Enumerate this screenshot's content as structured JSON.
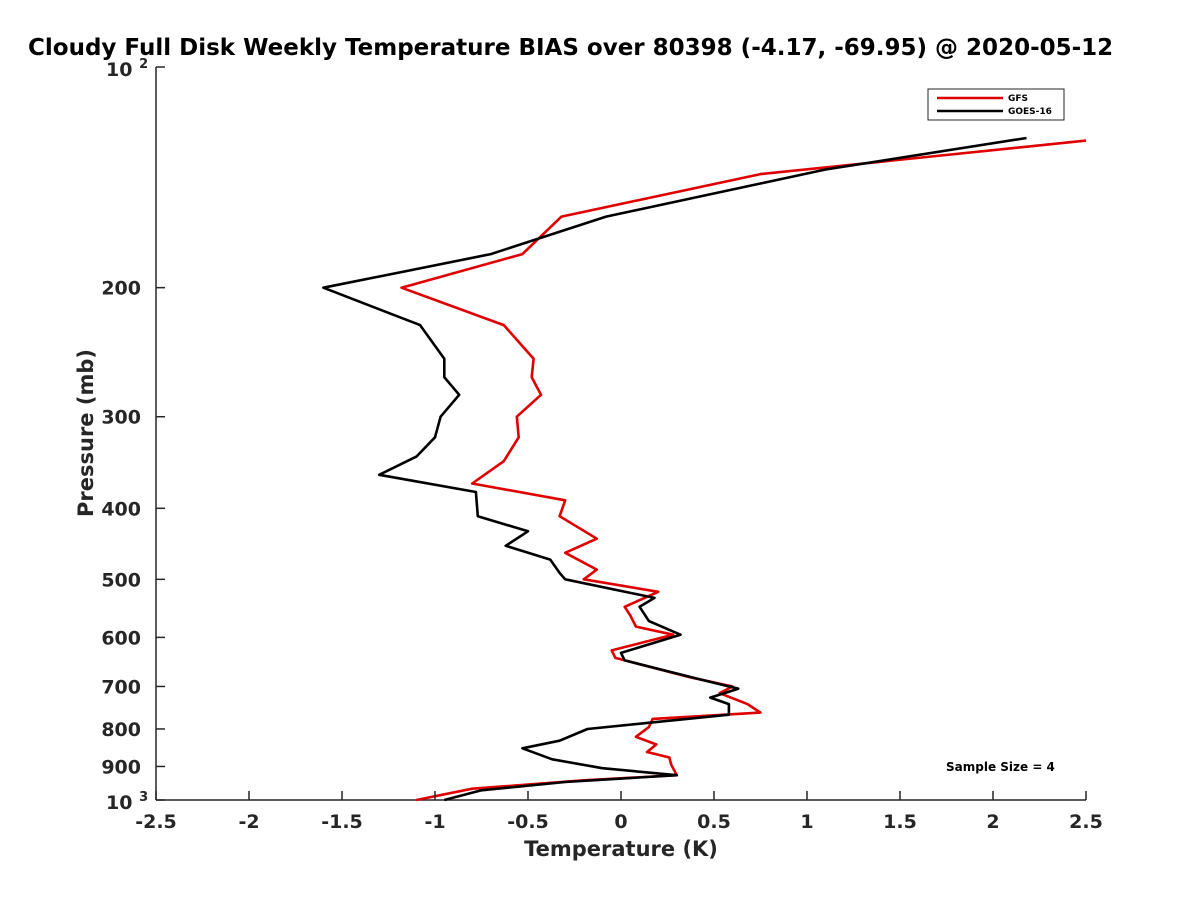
{
  "chart_data": {
    "type": "line",
    "title": "Cloudy Full Disk Weekly Temperature BIAS over 80398 (-4.17, -69.95) @ 2020-05-12",
    "xlabel": "Temperature (K)",
    "ylabel": "Pressure (mb)",
    "xlim": [
      -2.5,
      2.5
    ],
    "ylim": [
      100,
      1000
    ],
    "y_scale": "log",
    "y_reversed": true,
    "grid": false,
    "legend_position": "top-right",
    "x_ticks": [
      "-2.5",
      "-2",
      "-1.5",
      "-1",
      "-0.5",
      "0",
      "0.5",
      "1",
      "1.5",
      "2",
      "2.5"
    ],
    "y_ticks": [
      "200",
      "300",
      "400",
      "500",
      "600",
      "700",
      "800",
      "900"
    ],
    "y_tick_top": {
      "base": "10",
      "exp": "2"
    },
    "y_tick_bottom": {
      "base": "10",
      "exp": "3"
    },
    "annotation": "Sample Size = 4",
    "series": [
      {
        "name": "GFS",
        "color": "#e00000",
        "points": [
          [
            2.5,
            126
          ],
          [
            0.75,
            140
          ],
          [
            -0.32,
            160
          ],
          [
            -0.53,
            180
          ],
          [
            -1.18,
            200
          ],
          [
            -0.63,
            225
          ],
          [
            -0.47,
            250
          ],
          [
            -0.48,
            265
          ],
          [
            -0.43,
            280
          ],
          [
            -0.56,
            300
          ],
          [
            -0.55,
            320
          ],
          [
            -0.63,
            345
          ],
          [
            -0.8,
            370
          ],
          [
            -0.3,
            390
          ],
          [
            -0.33,
            410
          ],
          [
            -0.13,
            440
          ],
          [
            -0.3,
            460
          ],
          [
            -0.13,
            485
          ],
          [
            -0.2,
            500
          ],
          [
            0.2,
            520
          ],
          [
            0.02,
            545
          ],
          [
            0.05,
            560
          ],
          [
            0.08,
            580
          ],
          [
            0.28,
            595
          ],
          [
            -0.05,
            625
          ],
          [
            -0.03,
            640
          ],
          [
            0.37,
            680
          ],
          [
            0.6,
            700
          ],
          [
            0.53,
            715
          ],
          [
            0.68,
            740
          ],
          [
            0.75,
            760
          ],
          [
            0.17,
            775
          ],
          [
            0.15,
            795
          ],
          [
            0.08,
            820
          ],
          [
            0.19,
            840
          ],
          [
            0.14,
            860
          ],
          [
            0.26,
            875
          ],
          [
            0.27,
            895
          ],
          [
            0.3,
            925
          ],
          [
            -0.2,
            940
          ],
          [
            -0.8,
            965
          ],
          [
            -1.1,
            1000
          ]
        ]
      },
      {
        "name": "GOES-16",
        "color": "#000000",
        "points": [
          [
            2.18,
            125
          ],
          [
            1.1,
            138
          ],
          [
            -0.08,
            160
          ],
          [
            -0.7,
            180
          ],
          [
            -1.6,
            200
          ],
          [
            -1.08,
            225
          ],
          [
            -0.95,
            250
          ],
          [
            -0.95,
            265
          ],
          [
            -0.87,
            280
          ],
          [
            -0.97,
            300
          ],
          [
            -1.0,
            320
          ],
          [
            -1.1,
            340
          ],
          [
            -1.3,
            360
          ],
          [
            -0.78,
            380
          ],
          [
            -0.77,
            410
          ],
          [
            -0.5,
            430
          ],
          [
            -0.62,
            450
          ],
          [
            -0.38,
            470
          ],
          [
            -0.33,
            490
          ],
          [
            -0.3,
            500
          ],
          [
            0.18,
            530
          ],
          [
            0.1,
            545
          ],
          [
            0.15,
            570
          ],
          [
            0.32,
            595
          ],
          [
            0.0,
            630
          ],
          [
            0.02,
            645
          ],
          [
            0.43,
            685
          ],
          [
            0.63,
            705
          ],
          [
            0.48,
            725
          ],
          [
            0.58,
            740
          ],
          [
            0.58,
            765
          ],
          [
            -0.18,
            800
          ],
          [
            -0.33,
            830
          ],
          [
            -0.53,
            850
          ],
          [
            -0.37,
            880
          ],
          [
            -0.1,
            905
          ],
          [
            0.3,
            925
          ],
          [
            -0.3,
            945
          ],
          [
            -0.75,
            970
          ],
          [
            -0.95,
            1000
          ]
        ]
      }
    ]
  }
}
